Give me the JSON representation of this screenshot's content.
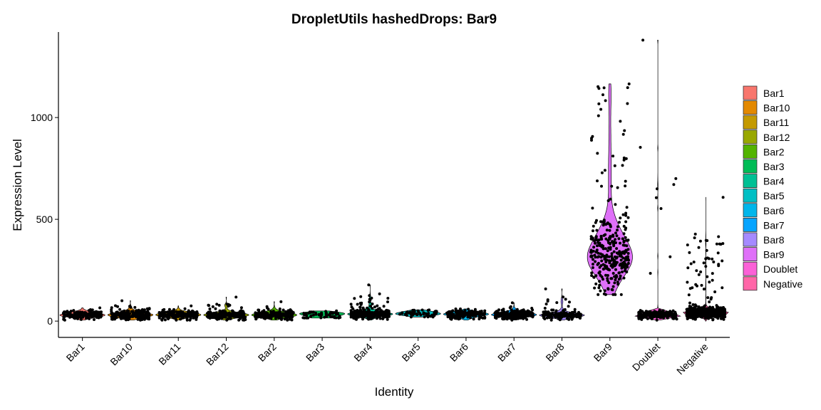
{
  "chart_data": {
    "type": "violin",
    "title": "DropletUtils hashedDrops: Bar9",
    "xlabel": "Identity",
    "ylabel": "Expression Level",
    "ylim": [
      -80,
      1420
    ],
    "yticks": [
      0,
      500,
      1000
    ],
    "grid": false,
    "legend_position": "right",
    "categories": [
      "Bar1",
      "Bar10",
      "Bar11",
      "Bar12",
      "Bar2",
      "Bar3",
      "Bar4",
      "Bar5",
      "Bar6",
      "Bar7",
      "Bar8",
      "Bar9",
      "Doublet",
      "Negative"
    ],
    "colors": [
      "#F8766D",
      "#E38900",
      "#C49A00",
      "#99A800",
      "#53B400",
      "#00BC56",
      "#00C094",
      "#00BFC4",
      "#00B6EB",
      "#06A4FF",
      "#A58AFF",
      "#DF70F8",
      "#FB61D7",
      "#FF66A8"
    ],
    "series": [
      {
        "name": "Bar1",
        "median": 30,
        "min": 5,
        "max": 65,
        "n": 150
      },
      {
        "name": "Bar10",
        "median": 30,
        "min": 5,
        "max": 100,
        "n": 250
      },
      {
        "name": "Bar11",
        "median": 30,
        "min": 5,
        "max": 75,
        "n": 200
      },
      {
        "name": "Bar12",
        "median": 30,
        "min": 5,
        "max": 118,
        "n": 220
      },
      {
        "name": "Bar2",
        "median": 30,
        "min": 5,
        "max": 95,
        "n": 200
      },
      {
        "name": "Bar3",
        "median": 30,
        "min": 15,
        "max": 50,
        "n": 60
      },
      {
        "name": "Bar4",
        "median": 35,
        "min": 5,
        "max": 178,
        "n": 300
      },
      {
        "name": "Bar5",
        "median": 35,
        "min": 20,
        "max": 55,
        "n": 60
      },
      {
        "name": "Bar6",
        "median": 30,
        "min": 5,
        "max": 60,
        "n": 180
      },
      {
        "name": "Bar7",
        "median": 30,
        "min": 5,
        "max": 90,
        "n": 250
      },
      {
        "name": "Bar8",
        "median": 30,
        "min": 5,
        "max": 158,
        "n": 150
      },
      {
        "name": "Bar9",
        "median": 320,
        "min": 130,
        "max": 1165,
        "n": 320
      },
      {
        "name": "Doublet",
        "median": 30,
        "min": 5,
        "max": 1380,
        "n": 200
      },
      {
        "name": "Negative",
        "median": 40,
        "min": 0,
        "max": 608,
        "n": 900
      }
    ]
  }
}
